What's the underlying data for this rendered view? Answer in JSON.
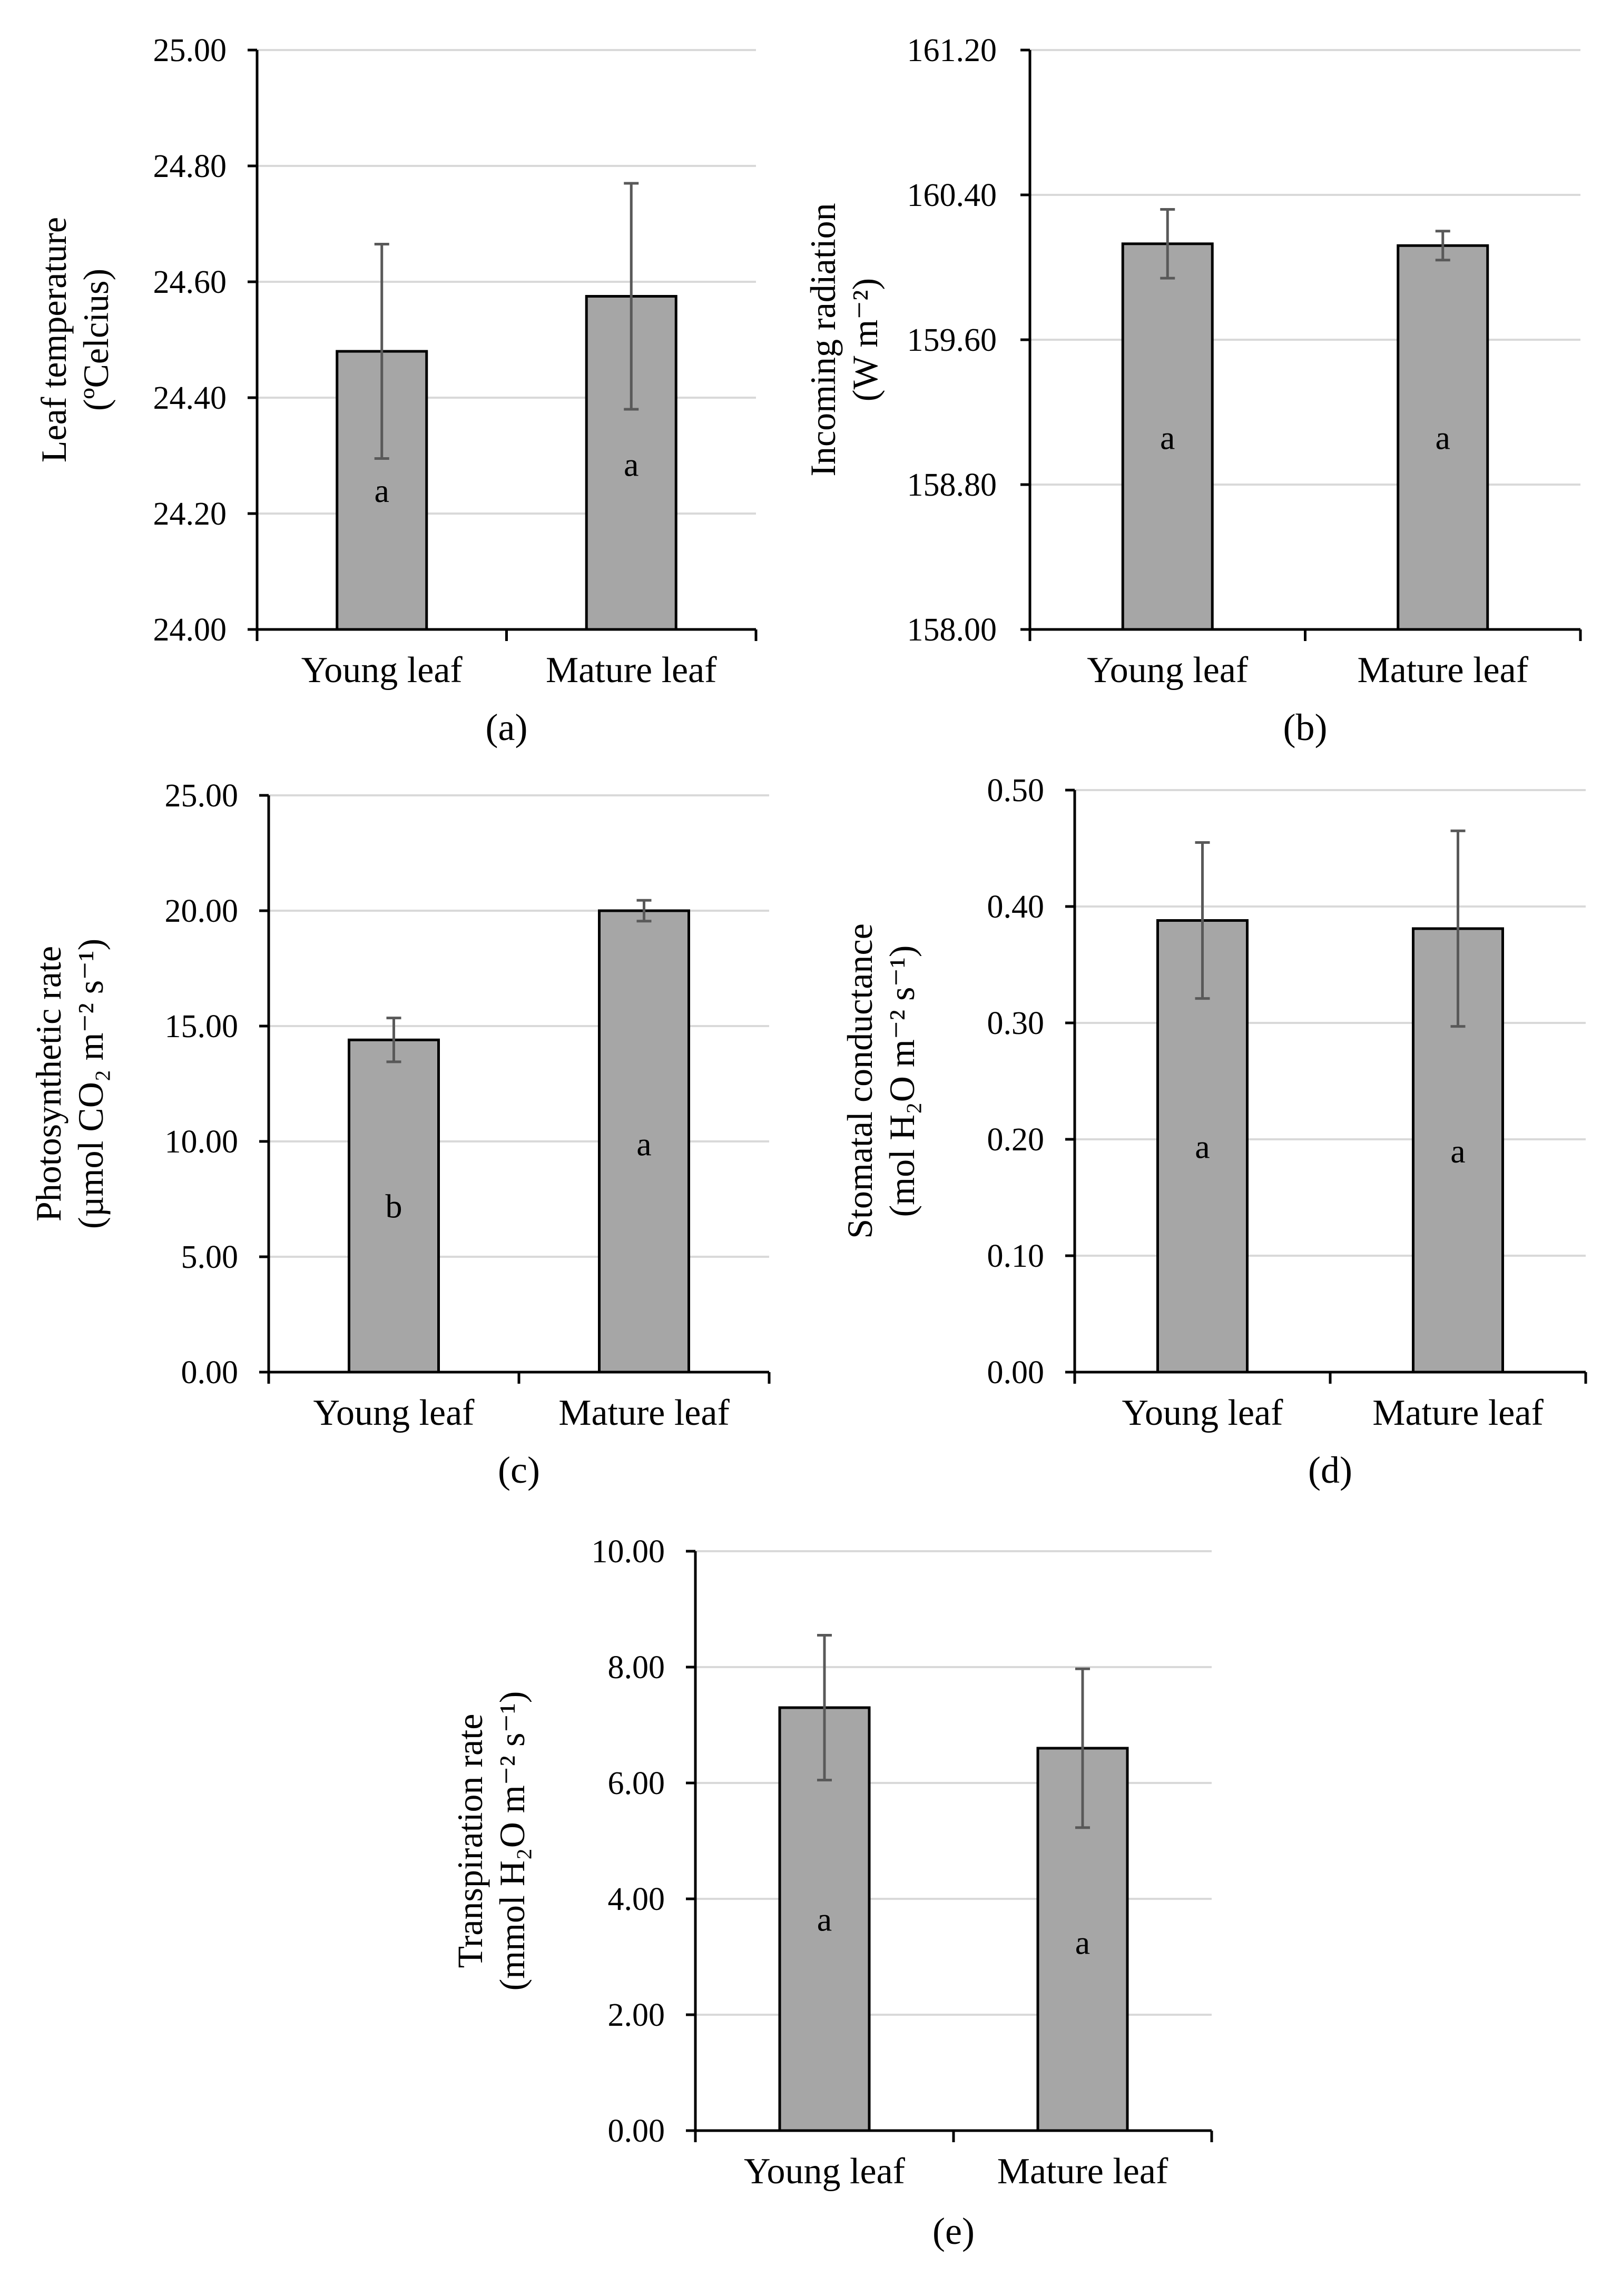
{
  "figure": {
    "colors": {
      "bar": "#a6a6a6",
      "grid": "#d9d9d9",
      "axis": "#000000",
      "error": "#595959"
    }
  },
  "chart_data": [
    {
      "type": "bar",
      "panel": "a",
      "categories": [
        "Young leaf",
        "Mature leaf"
      ],
      "values": [
        24.48,
        24.575
      ],
      "errors": [
        0.185,
        0.195
      ],
      "significance": [
        "a",
        "a"
      ],
      "ylabel_line1": "Leaf temperature",
      "ylabel_line2": "(ºCelcius)",
      "ylim": [
        24.0,
        25.0
      ],
      "yticks": [
        "24.00",
        "24.20",
        "24.40",
        "24.60",
        "24.80",
        "25.00"
      ],
      "tick_values": [
        24.0,
        24.2,
        24.4,
        24.6,
        24.8,
        25.0
      ],
      "sig_y": [
        24.24,
        24.285
      ]
    },
    {
      "type": "bar",
      "panel": "b",
      "categories": [
        "Young leaf",
        "Mature leaf"
      ],
      "values": [
        160.13,
        160.12
      ],
      "errors": [
        0.19,
        0.08
      ],
      "significance": [
        "a",
        "a"
      ],
      "ylabel_line1": "Incoming radiation",
      "ylabel_line2": "(W m⁻²)",
      "ylim": [
        158.0,
        161.2
      ],
      "yticks": [
        "158.00",
        "158.80",
        "159.60",
        "160.40",
        "161.20"
      ],
      "tick_values": [
        158.0,
        158.8,
        159.6,
        160.4,
        161.2
      ],
      "sig_y": [
        159.06,
        159.06
      ]
    },
    {
      "type": "bar",
      "panel": "c",
      "categories": [
        "Young leaf",
        "Mature leaf"
      ],
      "values": [
        14.4,
        20.0
      ],
      "errors": [
        0.95,
        0.45
      ],
      "significance": [
        "b",
        "a"
      ],
      "ylabel_line1": "Photosynthetic rate",
      "ylabel_line2": "(µmol CO₂  m⁻² s⁻¹)",
      "ylim": [
        0,
        25
      ],
      "yticks": [
        "0.00",
        "5.00",
        "10.00",
        "15.00",
        "20.00",
        "25.00"
      ],
      "tick_values": [
        0,
        5,
        10,
        15,
        20,
        25
      ],
      "sig_y": [
        7.2,
        9.9
      ]
    },
    {
      "type": "bar",
      "panel": "d",
      "categories": [
        "Young leaf",
        "Mature leaf"
      ],
      "values": [
        0.388,
        0.381
      ],
      "errors": [
        0.067,
        0.084
      ],
      "significance": [
        "a",
        "a"
      ],
      "ylabel_line1": "Stomatal conductance",
      "ylabel_line2": "(mol H₂O m⁻² s⁻¹)",
      "ylim": [
        0,
        0.5
      ],
      "yticks": [
        "0.00",
        "0.10",
        "0.20",
        "0.30",
        "0.40",
        "0.50"
      ],
      "tick_values": [
        0,
        0.1,
        0.2,
        0.3,
        0.4,
        0.5
      ],
      "sig_y": [
        0.194,
        0.19
      ]
    },
    {
      "type": "bar",
      "panel": "e",
      "categories": [
        "Young leaf",
        "Mature leaf"
      ],
      "values": [
        7.3,
        6.6
      ],
      "errors": [
        1.25,
        1.37
      ],
      "significance": [
        "a",
        "a"
      ],
      "ylabel_line1": "Transpiration rate",
      "ylabel_line2": "(mmol H₂O m⁻² s⁻¹)",
      "ylim": [
        0,
        10
      ],
      "yticks": [
        "0.00",
        "2.00",
        "4.00",
        "6.00",
        "8.00",
        "10.00"
      ],
      "tick_values": [
        0,
        2,
        4,
        6,
        8,
        10
      ],
      "sig_y": [
        3.65,
        3.25
      ]
    }
  ],
  "panel_labels": [
    "(a)",
    "(b)",
    "(c)",
    "(d)",
    "(e)"
  ]
}
